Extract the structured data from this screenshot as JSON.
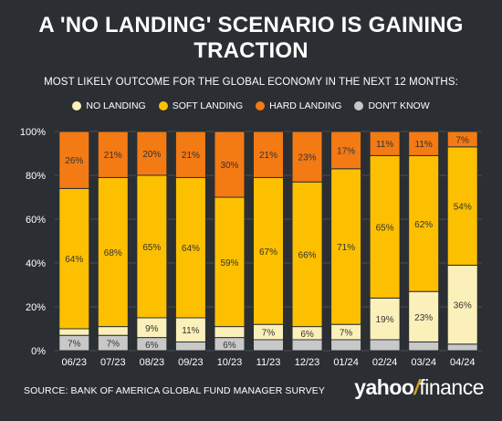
{
  "header": {
    "title_line1": "A 'NO LANDING' SCENARIO IS GAINING",
    "title_line2": "TRACTION",
    "subtitle": "MOST LIKELY OUTCOME FOR THE GLOBAL ECONOMY IN THE NEXT 12 MONTHS:"
  },
  "legend": [
    {
      "label": "NO LANDING",
      "color": "#fbf0b9"
    },
    {
      "label": "SOFT LANDING",
      "color": "#fcc000"
    },
    {
      "label": "HARD LANDING",
      "color": "#f47a14"
    },
    {
      "label": "DON'T KNOW",
      "color": "#c8c8c8"
    }
  ],
  "footer": {
    "source": "SOURCE: BANK OF AMERICA GLOBAL FUND MANAGER SURVEY",
    "brand_left": "yahoo",
    "brand_slash": "/",
    "brand_right": "finance"
  },
  "chart_data": {
    "type": "bar",
    "stacked": true,
    "ylim": [
      0,
      100
    ],
    "yticks": [
      "0%",
      "20%",
      "40%",
      "60%",
      "80%",
      "100%"
    ],
    "grid": true,
    "categories": [
      "06/23",
      "07/23",
      "08/23",
      "09/23",
      "10/23",
      "11/23",
      "12/23",
      "01/24",
      "02/24",
      "03/24",
      "04/24"
    ],
    "series": [
      {
        "name": "DON'T KNOW",
        "color": "#c8c8c8",
        "values": [
          7,
          7,
          6,
          4,
          6,
          5,
          5,
          5,
          5,
          4,
          3
        ],
        "labels": [
          "7%",
          "7%",
          "6%",
          "",
          "6%",
          "",
          "",
          "",
          "",
          "",
          ""
        ]
      },
      {
        "name": "NO LANDING",
        "color": "#fbf0b9",
        "values": [
          3,
          4,
          9,
          11,
          5,
          7,
          6,
          7,
          19,
          23,
          36
        ],
        "labels": [
          "",
          "",
          "9%",
          "11%",
          "",
          "7%",
          "6%",
          "7%",
          "19%",
          "23%",
          "36%"
        ]
      },
      {
        "name": "SOFT LANDING",
        "color": "#fcc000",
        "values": [
          64,
          68,
          65,
          64,
          59,
          67,
          66,
          71,
          65,
          62,
          54
        ],
        "labels": [
          "64%",
          "68%",
          "65%",
          "64%",
          "59%",
          "67%",
          "66%",
          "71%",
          "65%",
          "62%",
          "54%"
        ]
      },
      {
        "name": "HARD LANDING",
        "color": "#f47a14",
        "values": [
          26,
          21,
          20,
          21,
          30,
          21,
          23,
          17,
          11,
          11,
          7
        ],
        "labels": [
          "26%",
          "21%",
          "20%",
          "21%",
          "30%",
          "21%",
          "23%",
          "17%",
          "11%",
          "11%",
          "7%"
        ]
      }
    ]
  }
}
